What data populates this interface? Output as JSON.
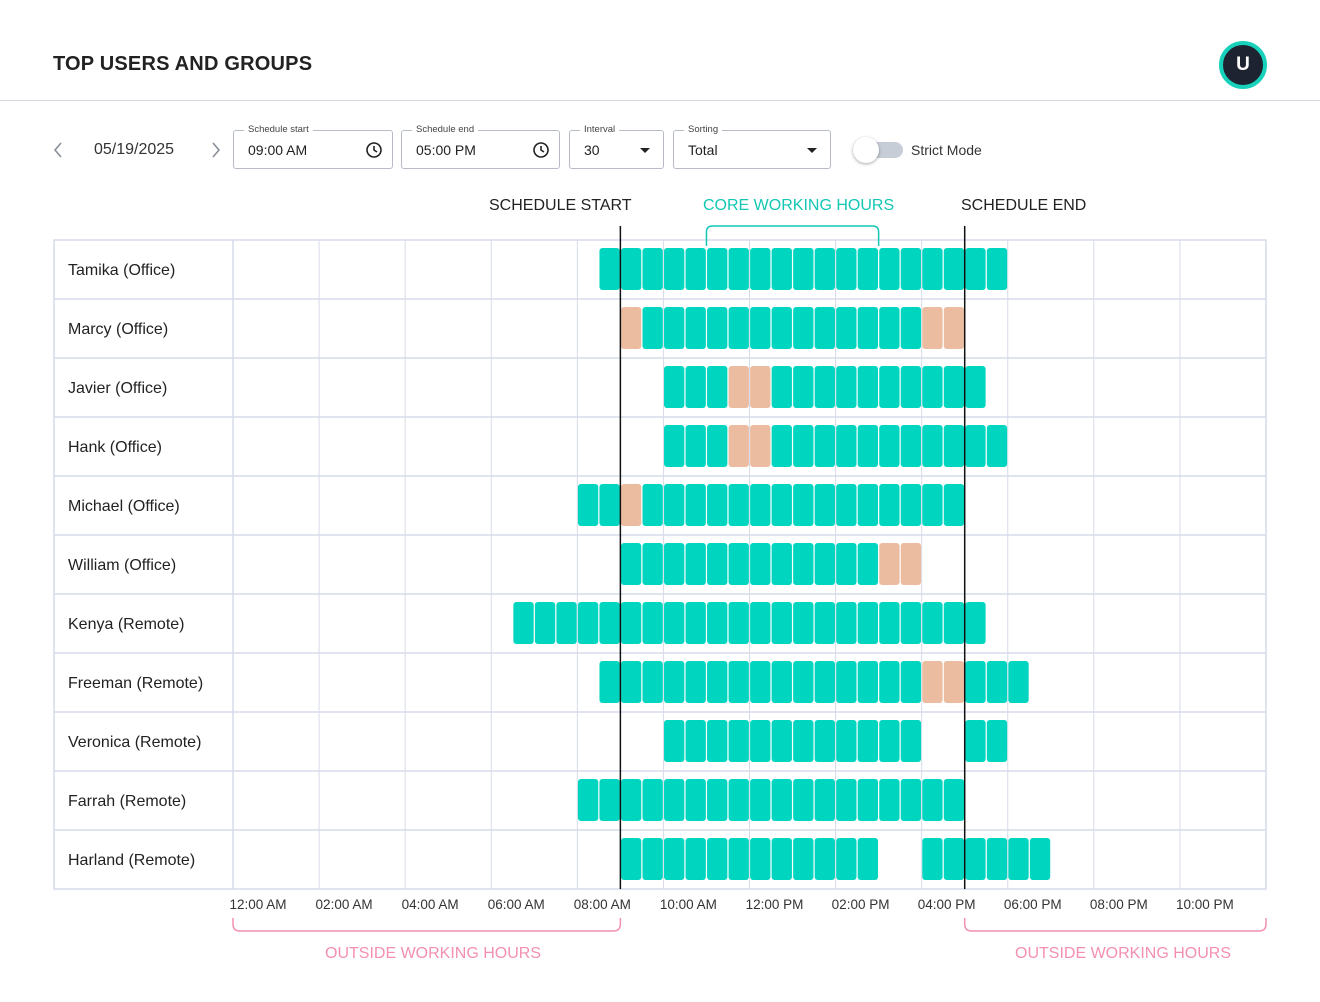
{
  "header": {
    "title": "TOP USERS AND GROUPS",
    "avatar_initial": "U"
  },
  "toolbar": {
    "date": "05/19/2025",
    "schedule_start": {
      "label": "Schedule start",
      "value": "09:00 AM"
    },
    "schedule_end": {
      "label": "Schedule end",
      "value": "05:00 PM"
    },
    "interval": {
      "label": "Interval",
      "value": "30"
    },
    "sorting": {
      "label": "Sorting",
      "value": "Total"
    },
    "strict_mode": {
      "label": "Strict Mode",
      "on": false
    }
  },
  "annotations": {
    "schedule_start": "SCHEDULE START",
    "core_hours": "CORE WORKING HOURS",
    "schedule_end": "SCHEDULE END",
    "outside_left": "OUTSIDE WORKING HOURS",
    "outside_right": "OUTSIDE WORKING HOURS"
  },
  "colors": {
    "active": "#00d6bf",
    "idle": "#ecbca0",
    "core_hours": "#14c7b4",
    "outside_hours": "#f48fb1",
    "grid": "#d6dbe8",
    "accent_avatar": "#17d1bb"
  },
  "chart_data": {
    "type": "timeline",
    "time_axis_labels": [
      "12:00 AM",
      "02:00 AM",
      "04:00 AM",
      "06:00 AM",
      "08:00 AM",
      "10:00 AM",
      "12:00 PM",
      "02:00 PM",
      "04:00 PM",
      "06:00 PM",
      "08:00 PM",
      "10:00 PM"
    ],
    "axis_range_hours": [
      0,
      24
    ],
    "interval_minutes": 30,
    "schedule_start_hour": 9,
    "schedule_end_hour": 17,
    "core_hours_range": [
      11,
      15
    ],
    "rows": [
      {
        "name": "Tamika (Office)",
        "segments": [
          {
            "start": 8.5,
            "end": 18,
            "state": "active"
          }
        ]
      },
      {
        "name": "Marcy (Office)",
        "segments": [
          {
            "start": 9,
            "end": 9.5,
            "state": "idle"
          },
          {
            "start": 9.5,
            "end": 16,
            "state": "active"
          },
          {
            "start": 16,
            "end": 17,
            "state": "idle"
          }
        ]
      },
      {
        "name": "Javier (Office)",
        "segments": [
          {
            "start": 10,
            "end": 11.5,
            "state": "active"
          },
          {
            "start": 11.5,
            "end": 12.5,
            "state": "idle"
          },
          {
            "start": 12.5,
            "end": 17.5,
            "state": "active"
          }
        ]
      },
      {
        "name": "Hank (Office)",
        "segments": [
          {
            "start": 10,
            "end": 11.5,
            "state": "active"
          },
          {
            "start": 11.5,
            "end": 12.5,
            "state": "idle"
          },
          {
            "start": 12.5,
            "end": 18,
            "state": "active"
          }
        ]
      },
      {
        "name": "Michael (Office)",
        "segments": [
          {
            "start": 8,
            "end": 9,
            "state": "active"
          },
          {
            "start": 9,
            "end": 9.5,
            "state": "idle"
          },
          {
            "start": 9.5,
            "end": 17,
            "state": "active"
          }
        ]
      },
      {
        "name": "William (Office)",
        "segments": [
          {
            "start": 9,
            "end": 15,
            "state": "active"
          },
          {
            "start": 15,
            "end": 16,
            "state": "idle"
          }
        ]
      },
      {
        "name": "Kenya (Remote)",
        "segments": [
          {
            "start": 6.5,
            "end": 17.5,
            "state": "active"
          }
        ]
      },
      {
        "name": "Freeman (Remote)",
        "segments": [
          {
            "start": 8.5,
            "end": 16,
            "state": "active"
          },
          {
            "start": 16,
            "end": 17,
            "state": "idle"
          },
          {
            "start": 17,
            "end": 18.5,
            "state": "active"
          }
        ]
      },
      {
        "name": "Veronica (Remote)",
        "segments": [
          {
            "start": 10,
            "end": 16,
            "state": "active"
          },
          {
            "start": 17,
            "end": 18,
            "state": "active"
          }
        ]
      },
      {
        "name": "Farrah (Remote)",
        "segments": [
          {
            "start": 8,
            "end": 17,
            "state": "active"
          }
        ]
      },
      {
        "name": "Harland (Remote)",
        "segments": [
          {
            "start": 9,
            "end": 15,
            "state": "active"
          },
          {
            "start": 16,
            "end": 19,
            "state": "active"
          }
        ]
      }
    ]
  }
}
